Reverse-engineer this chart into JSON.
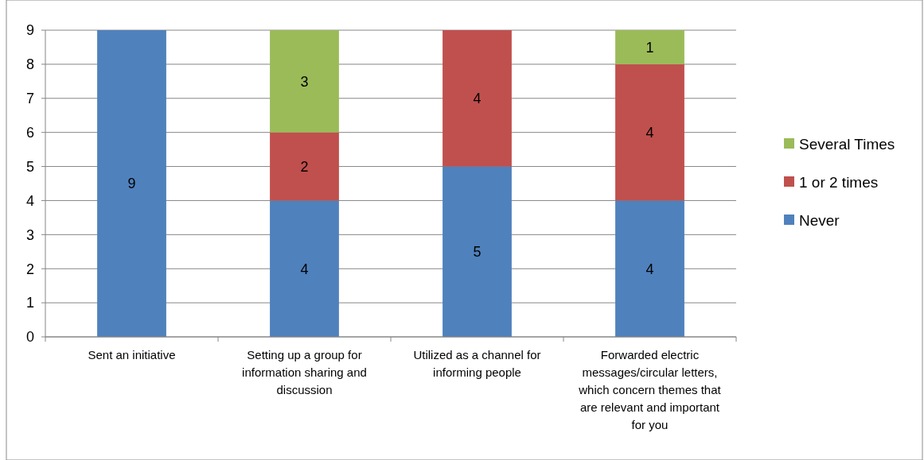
{
  "chart_data": {
    "type": "bar",
    "stacked": true,
    "categories": [
      "Sent an initiative",
      "Setting up a group for information sharing and discussion",
      "Utilized as a channel for informing people",
      "Forwarded electric messages/circular letters, which concern themes that are relevant and important for you"
    ],
    "series": [
      {
        "name": "Never",
        "color": "#4f81bd",
        "values": [
          9,
          4,
          5,
          4
        ],
        "value_labels": [
          "9",
          "4",
          "5",
          "4"
        ]
      },
      {
        "name": "1 or 2 times",
        "color": "#c0504d",
        "values": [
          0,
          2,
          4,
          4
        ],
        "value_labels": [
          null,
          "2",
          "4",
          "4"
        ]
      },
      {
        "name": "Several Times",
        "color": "#9bbb59",
        "values": [
          0,
          3,
          0,
          1
        ],
        "value_labels": [
          null,
          "3",
          null,
          "1"
        ]
      }
    ],
    "ylim": [
      0,
      9
    ],
    "yticks": [
      0,
      1,
      2,
      3,
      4,
      5,
      6,
      7,
      8,
      9
    ],
    "grid": "y",
    "legend": "right"
  }
}
